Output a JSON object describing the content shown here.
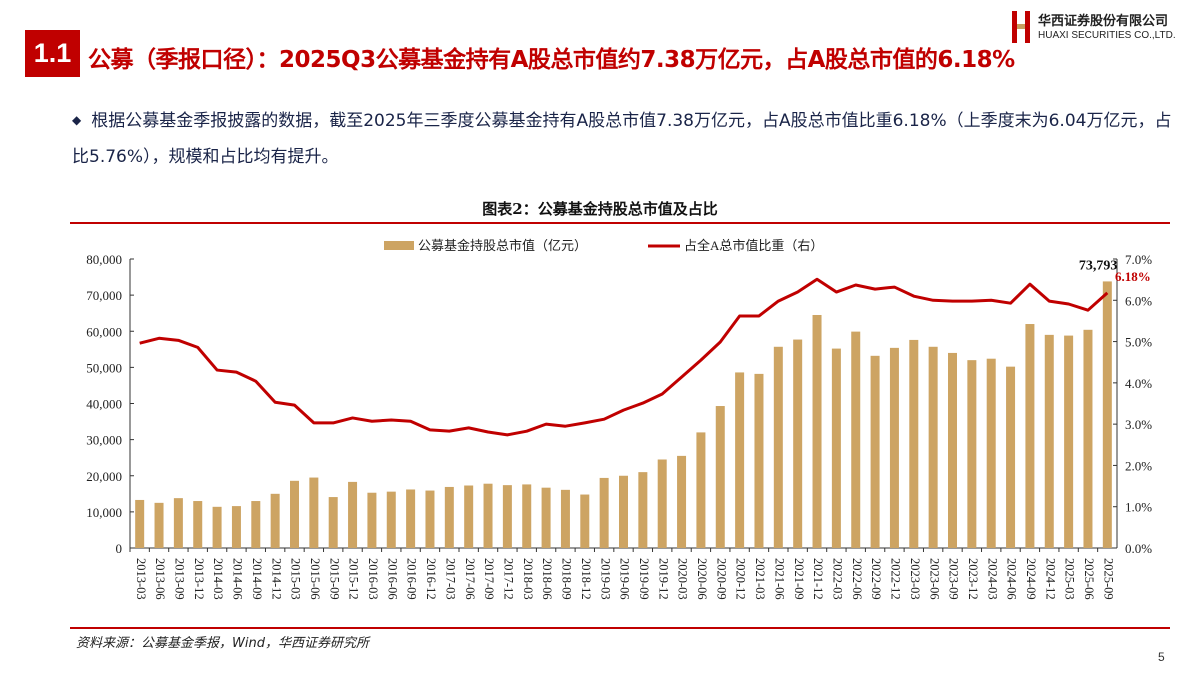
{
  "header": {
    "section_number": "1.1",
    "title": "公募（季报口径）：2025Q3公募基金持有A股总市值约7.38万亿元，占A股总市值的6.18%"
  },
  "logo": {
    "cn": "华西证券股份有限公司",
    "en": "HUAXI SECURITIES CO.,LTD."
  },
  "bullet": {
    "icon": "diamond-bullet-icon",
    "text": "根据公募基金季报披露的数据，截至2025年三季度公募基金持有A股总市值7.38万亿元，占A股总市值比重6.18%（上季度末为6.04万亿元，占比5.76%），规模和占比均有提升。"
  },
  "source": "资料来源：公募基金季报，Wind，华西证券研究所",
  "page_number": "5",
  "colors": {
    "accent": "#c00000",
    "bar": "#cda463",
    "line": "#c00000"
  },
  "chart_data": {
    "type": "bar+line",
    "title": "图表2：公募基金持股总市值及占比",
    "legend": [
      "公募基金持股总市值（亿元）",
      "占全A总市值比重（右）"
    ],
    "legend_position": "top-center",
    "categories": [
      "2013-03",
      "2013-06",
      "2013-09",
      "2013-12",
      "2014-03",
      "2014-06",
      "2014-09",
      "2014-12",
      "2015-03",
      "2015-06",
      "2015-09",
      "2015-12",
      "2016-03",
      "2016-06",
      "2016-09",
      "2016-12",
      "2017-03",
      "2017-06",
      "2017-09",
      "2017-12",
      "2018-03",
      "2018-06",
      "2018-09",
      "2018-12",
      "2019-03",
      "2019-06",
      "2019-09",
      "2019-12",
      "2020-03",
      "2020-06",
      "2020-09",
      "2020-12",
      "2021-03",
      "2021-06",
      "2021-09",
      "2021-12",
      "2022-03",
      "2022-06",
      "2022-09",
      "2022-12",
      "2023-03",
      "2023-06",
      "2023-09",
      "2023-12",
      "2024-03",
      "2024-06",
      "2024-09",
      "2024-12",
      "2025-03",
      "2025-06",
      "2025-09"
    ],
    "series": [
      {
        "name": "公募基金持股总市值（亿元）",
        "axis": "left",
        "type": "bar",
        "values": [
          13300,
          12500,
          13800,
          13000,
          11400,
          11600,
          13000,
          15000,
          18600,
          19500,
          14100,
          18300,
          15300,
          15600,
          16200,
          15900,
          16900,
          17300,
          17800,
          17400,
          17600,
          16700,
          16100,
          14800,
          19400,
          20000,
          21000,
          24500,
          25500,
          32000,
          39300,
          48600,
          48200,
          55700,
          57700,
          64500,
          55200,
          59900,
          53200,
          55400,
          57600,
          55700,
          54000,
          52000,
          52400,
          50200,
          62000,
          59000,
          58800,
          60400,
          73793
        ]
      },
      {
        "name": "占全A总市值比重（右）",
        "axis": "right",
        "type": "line",
        "values": [
          4.96,
          5.08,
          5.03,
          4.86,
          4.31,
          4.26,
          4.04,
          3.53,
          3.46,
          3.03,
          3.03,
          3.15,
          3.07,
          3.1,
          3.07,
          2.86,
          2.83,
          2.91,
          2.81,
          2.74,
          2.83,
          3.0,
          2.95,
          3.03,
          3.12,
          3.34,
          3.51,
          3.73,
          4.14,
          4.55,
          4.99,
          5.62,
          5.62,
          5.98,
          6.2,
          6.51,
          6.2,
          6.37,
          6.27,
          6.32,
          6.1,
          6.0,
          5.98,
          5.98,
          6.0,
          5.93,
          6.39,
          5.98,
          5.91,
          5.76,
          6.18
        ]
      }
    ],
    "annotations": [
      "73,793",
      "6.18%"
    ],
    "y_left": {
      "lim": [
        0,
        80000
      ],
      "ticks": [
        "0",
        "10,000",
        "20,000",
        "30,000",
        "40,000",
        "50,000",
        "60,000",
        "70,000",
        "80,000"
      ]
    },
    "y_right": {
      "lim": [
        0,
        7
      ],
      "ticks": [
        "0.0%",
        "1.0%",
        "2.0%",
        "3.0%",
        "4.0%",
        "5.0%",
        "6.0%",
        "7.0%"
      ]
    },
    "grid": false
  }
}
